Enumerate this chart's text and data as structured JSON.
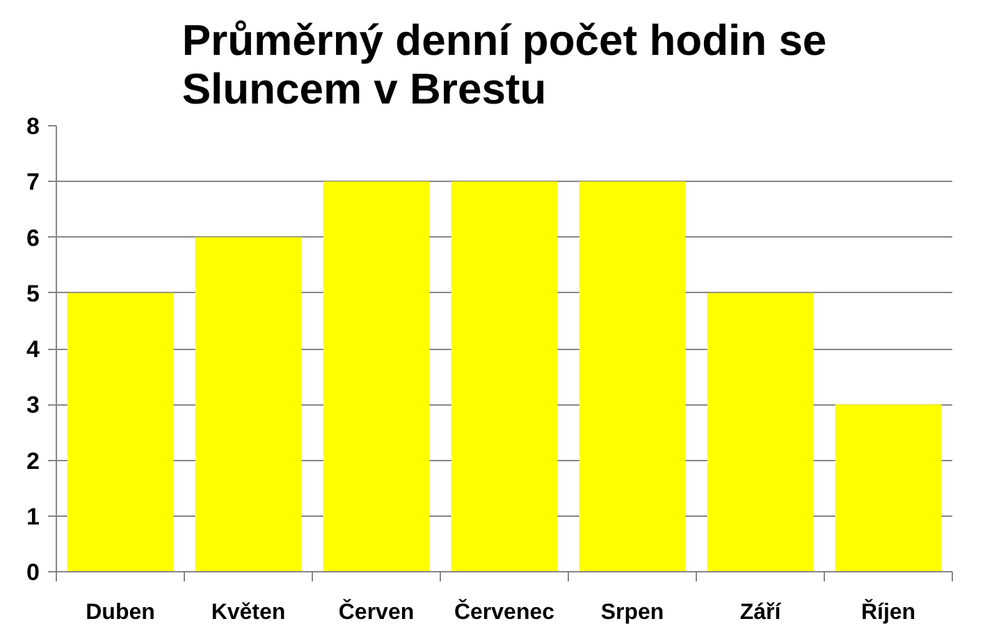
{
  "chart_data": {
    "type": "bar",
    "title": "Průměrný denní počet hodin se\nSluncem v Brestu",
    "categories": [
      "Duben",
      "Květen",
      "Červen",
      "Červenec",
      "Srpen",
      "Září",
      "Říjen"
    ],
    "values": [
      5,
      6,
      7,
      7,
      7,
      5,
      3
    ],
    "color": "#ffff00",
    "ylim": [
      0,
      8
    ],
    "yticks": [
      0,
      1,
      2,
      3,
      4,
      5,
      6,
      7,
      8
    ],
    "grid": "y"
  }
}
